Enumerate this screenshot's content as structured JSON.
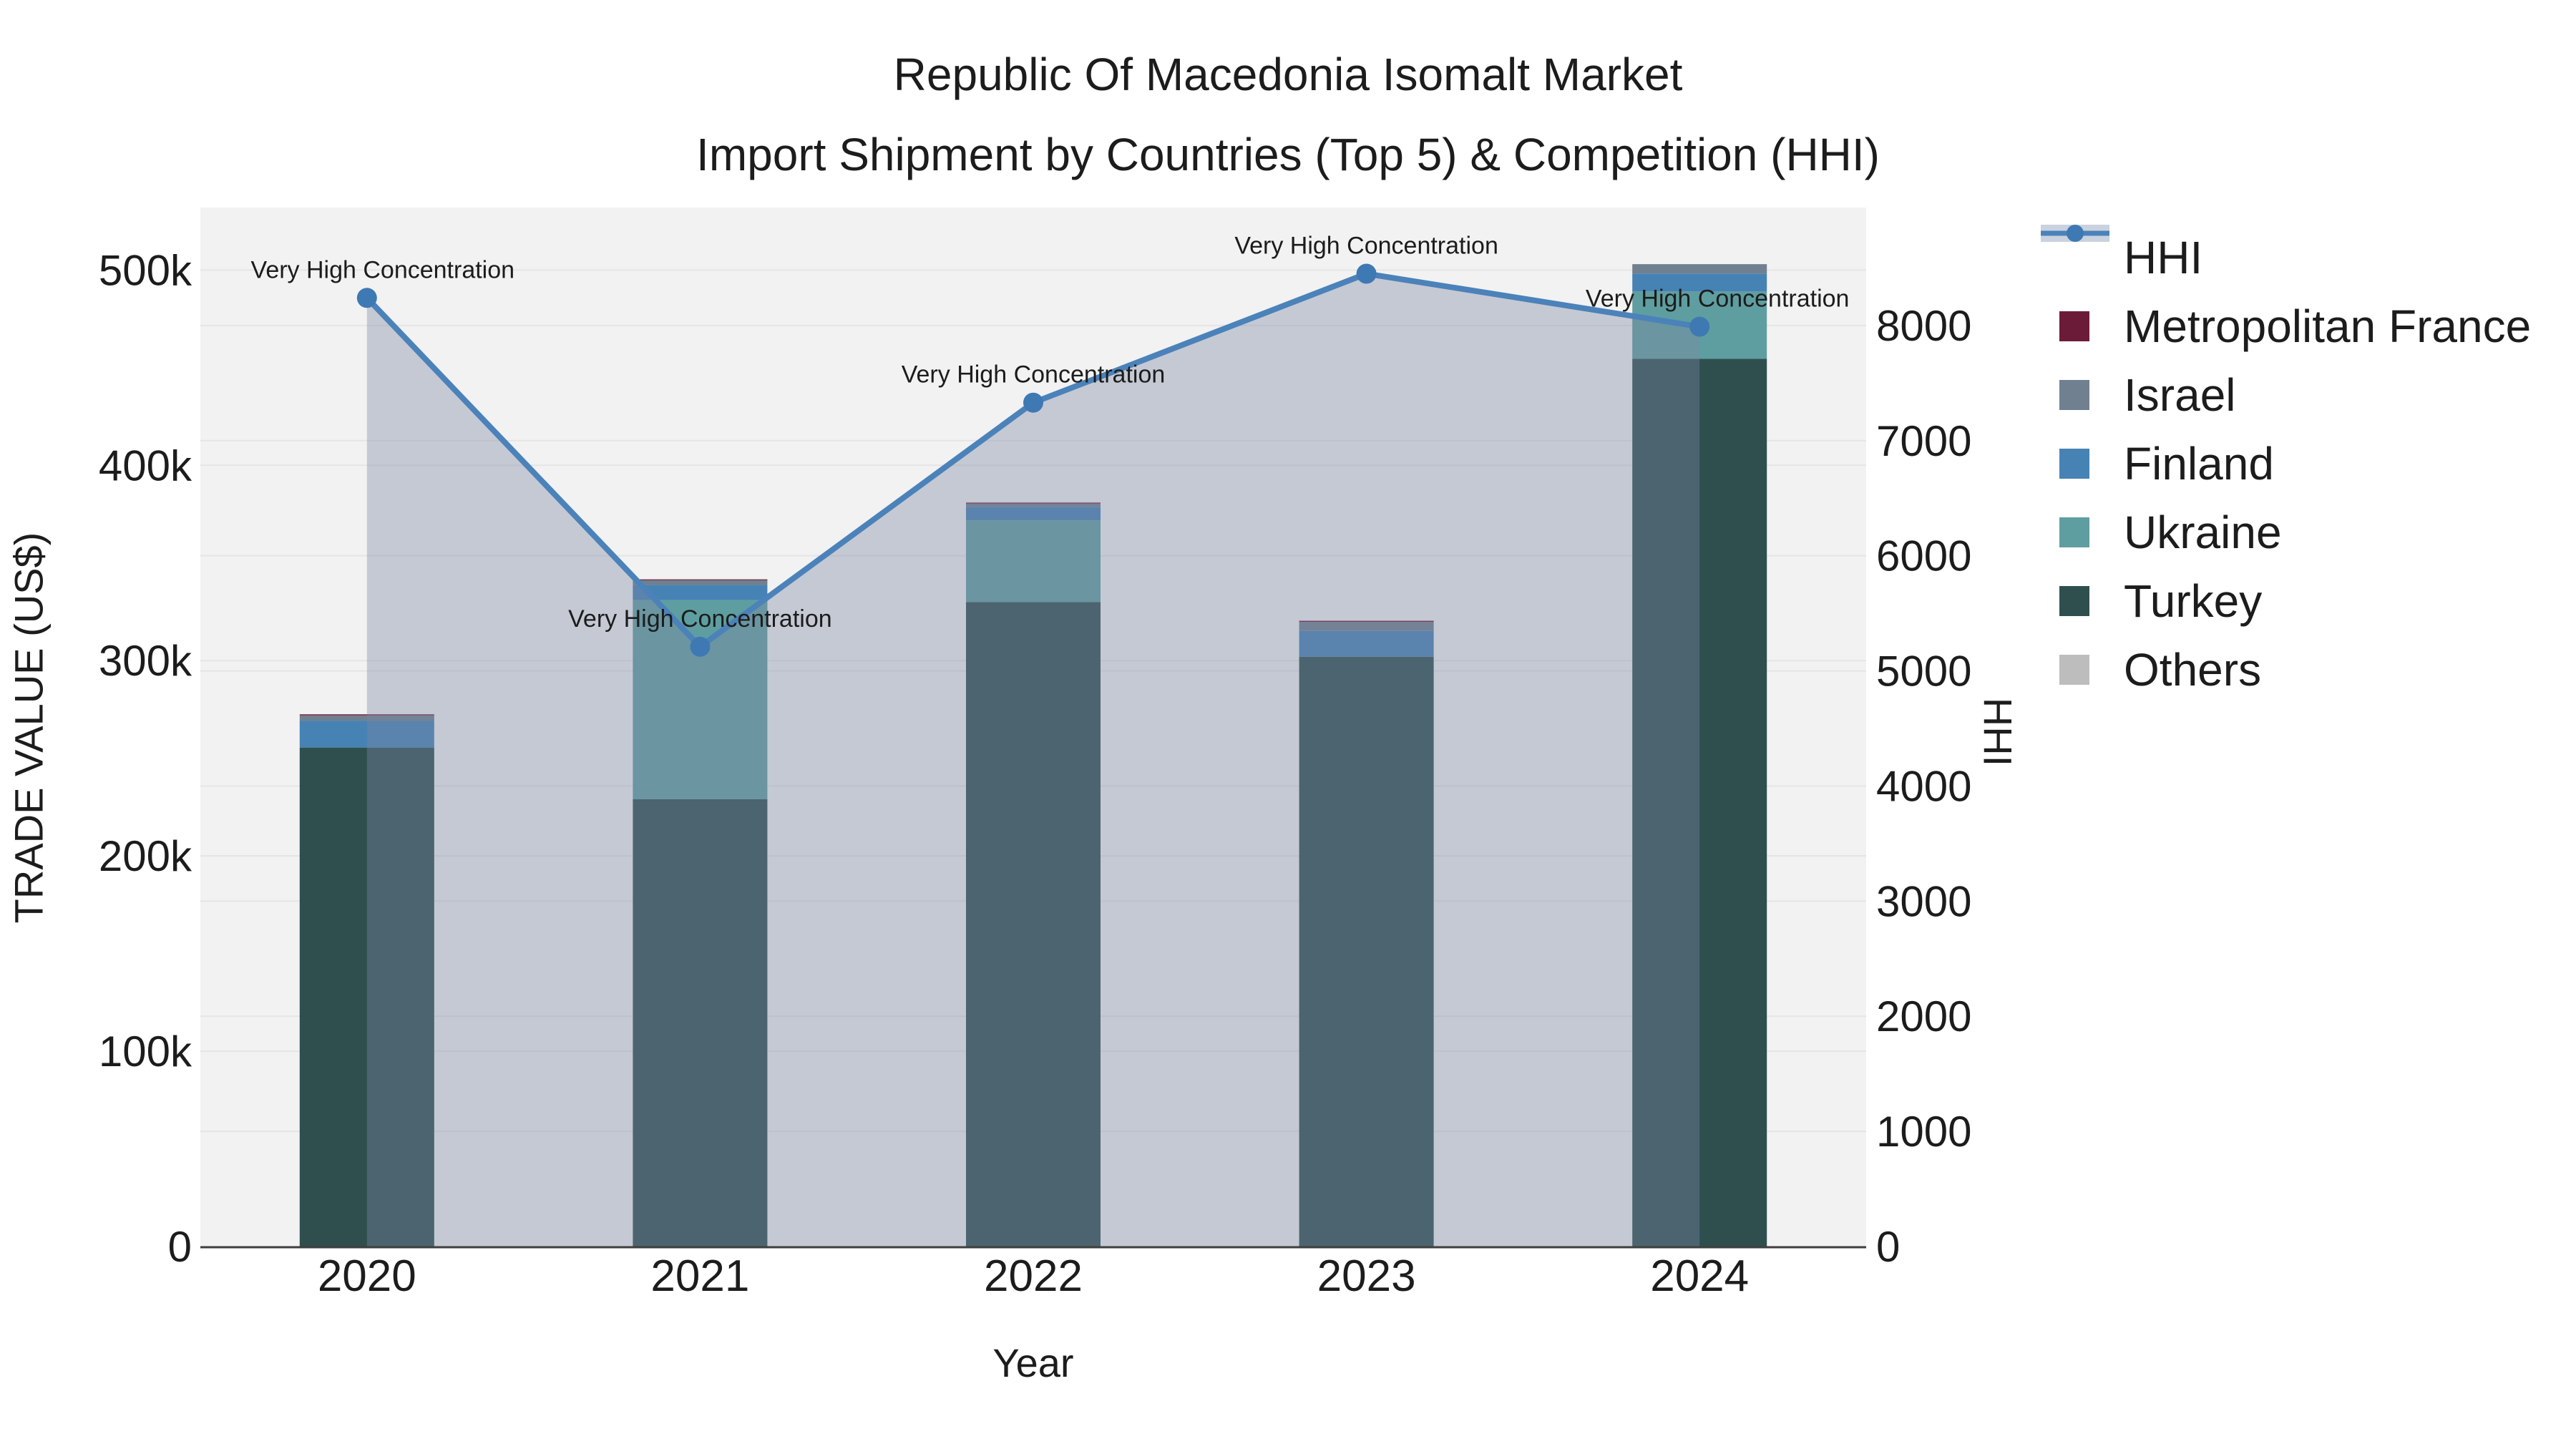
{
  "figure": {
    "title_line1": "Republic Of Macedonia Isomalt Market",
    "title_line2": "Import Shipment by Countries (Top 5) & Competition (HHI)"
  },
  "axes": {
    "left": {
      "title": "TRADE VALUE (US$)",
      "ticks": [
        {
          "value": 0,
          "label": "0"
        },
        {
          "value": 100000,
          "label": "100k"
        },
        {
          "value": 200000,
          "label": "200k"
        },
        {
          "value": 300000,
          "label": "300k"
        },
        {
          "value": 400000,
          "label": "400k"
        },
        {
          "value": 500000,
          "label": "500k"
        }
      ]
    },
    "right": {
      "title": "HHI",
      "ticks": [
        {
          "value": 0,
          "label": "0"
        },
        {
          "value": 1000,
          "label": "1000"
        },
        {
          "value": 2000,
          "label": "2000"
        },
        {
          "value": 3000,
          "label": "3000"
        },
        {
          "value": 4000,
          "label": "4000"
        },
        {
          "value": 5000,
          "label": "5000"
        },
        {
          "value": 6000,
          "label": "6000"
        },
        {
          "value": 7000,
          "label": "7000"
        },
        {
          "value": 8000,
          "label": "8000"
        }
      ]
    },
    "x": {
      "title": "Year"
    }
  },
  "legend": {
    "items": [
      {
        "label": "HHI",
        "type": "line",
        "color": "#4B82B9",
        "band_color": "#C9D2DE",
        "marker_color": "#3F79B4"
      },
      {
        "label": "Metropolitan France",
        "type": "square",
        "color": "#6B1B38"
      },
      {
        "label": "Israel",
        "type": "square",
        "color": "#708090"
      },
      {
        "label": "Finland",
        "type": "square",
        "color": "#4682B4"
      },
      {
        "label": "Ukraine",
        "type": "square",
        "color": "#5F9EA0"
      },
      {
        "label": "Turkey",
        "type": "square",
        "color": "#2F4F4F"
      },
      {
        "label": "Others",
        "type": "square",
        "color": "#BDBDBD"
      }
    ]
  },
  "style": {
    "plot_bg": "#F2F2F2",
    "grid_color": "#E5E5E5",
    "axis_line_color": "#3F3F3F",
    "text_color": "#1C1C1C",
    "area_fill": "rgba(124,135,163,0.38)",
    "line_color": "#4B82B9",
    "marker_color": "#3F79B4"
  },
  "chart_data": {
    "type": "bar",
    "stacked": true,
    "grid": true,
    "legend_position": "right",
    "title": "Republic Of Macedonia Isomalt Market Import Shipment by Countries (Top 5) & Competition (HHI)",
    "xlabel": "Year",
    "ylabel": "TRADE VALUE (US$)",
    "y2label": "HHI",
    "categories": [
      "2020",
      "2021",
      "2022",
      "2023",
      "2024"
    ],
    "ylim": [
      0,
      532000
    ],
    "y2lim": [
      0,
      9025
    ],
    "series": [
      {
        "name": "Turkey",
        "color": "#2F4F4F",
        "values": [
          255500,
          229000,
          330000,
          302000,
          454500
        ]
      },
      {
        "name": "Ukraine",
        "color": "#5F9EA0",
        "values": [
          0,
          102000,
          41800,
          0,
          34500
        ]
      },
      {
        "name": "Finland",
        "color": "#4682B4",
        "values": [
          13600,
          7700,
          6800,
          13200,
          9200
        ]
      },
      {
        "name": "Israel",
        "color": "#708090",
        "values": [
          2900,
          2500,
          1800,
          4600,
          4800
        ]
      },
      {
        "name": "Metropolitan France",
        "color": "#6B1B38",
        "values": [
          500,
          400,
          500,
          600,
          0
        ]
      },
      {
        "name": "Others",
        "color": "#BDBDBD",
        "values": [
          0,
          0,
          0,
          0,
          0
        ]
      }
    ],
    "line_series": {
      "name": "HHI",
      "axis": "right",
      "values": [
        8240,
        5210,
        7330,
        8450,
        7990
      ],
      "color": "#4B82B9",
      "marker_color": "#3F79B4",
      "area_fill": "rgba(124,135,163,0.38)"
    },
    "annotations": [
      {
        "text": "Very High Concentration",
        "x_offset": 22
      },
      {
        "text": "Very High Concentration",
        "x_offset": 0
      },
      {
        "text": "Very High Concentration",
        "x_offset": 0
      },
      {
        "text": "Very High Concentration",
        "x_offset": 0
      },
      {
        "text": "Very High Concentration",
        "x_offset": 25
      }
    ]
  }
}
